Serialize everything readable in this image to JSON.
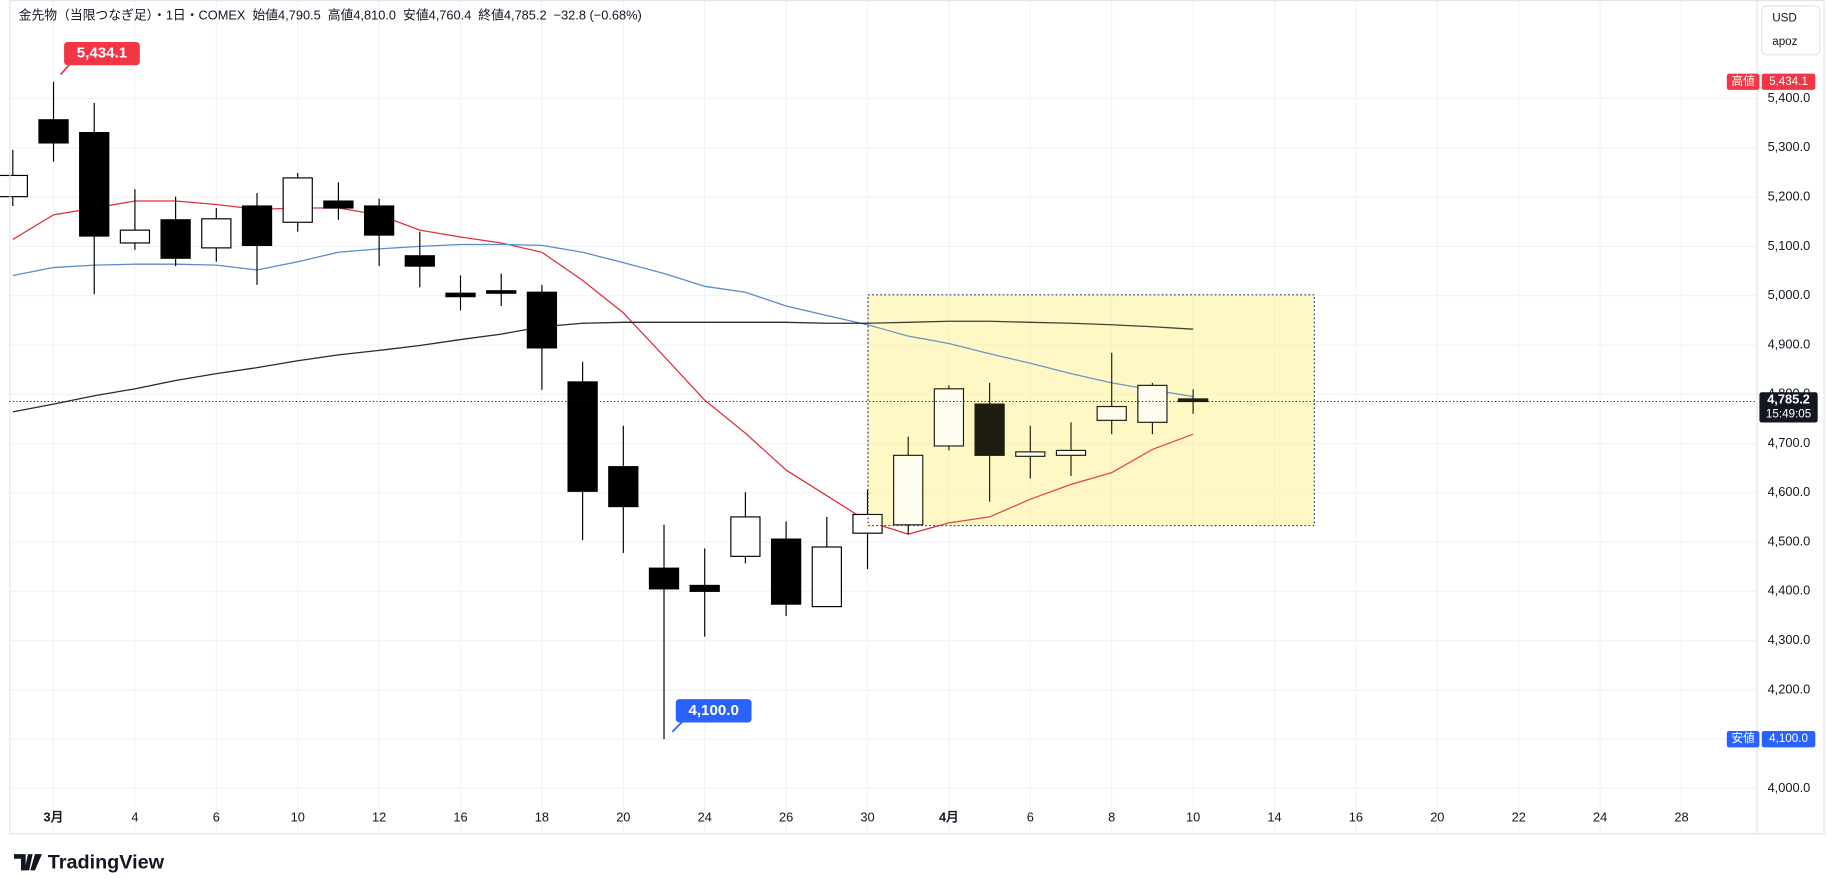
{
  "chart_data": {
    "type": "candlestick",
    "title": "金先物（当限つなぎ足）",
    "subtitle": "・1日・COMEX",
    "ohlc_legend": [
      {
        "label": "始値",
        "value": "4,790.5"
      },
      {
        "label": "高値",
        "value": "4,810.0"
      },
      {
        "label": "安値",
        "value": "4,760.4"
      },
      {
        "label": "終値",
        "value": "4,785.2"
      }
    ],
    "change": "−32.8 (−0.68%)",
    "categories": [
      null,
      "3月",
      null,
      "4",
      null,
      "6",
      null,
      "10",
      null,
      "12",
      null,
      "16",
      null,
      "18",
      null,
      "20",
      null,
      "24",
      null,
      "26",
      null,
      "30",
      null,
      "4月",
      null,
      "6",
      null,
      "8",
      null,
      "10",
      null,
      "14",
      null,
      "16",
      null,
      "20",
      null,
      "22",
      null,
      "24",
      null,
      "28"
    ],
    "open": [
      5201,
      5357,
      5331,
      5107,
      5154,
      5097,
      5182,
      5149,
      5192,
      5182,
      5081,
      5005,
      5010,
      5007,
      4825,
      4653,
      4447,
      4412,
      4471,
      4506,
      4369,
      4518,
      4535,
      4695,
      4780,
      4674,
      4676,
      4747,
      4743,
      4790.5,
      null,
      null,
      null,
      null,
      null,
      null,
      null,
      null,
      null,
      null,
      null,
      null
    ],
    "high": [
      5296,
      5434.1,
      5391,
      5216,
      5201,
      5178,
      5208,
      5249,
      5230,
      5197,
      5130,
      5041,
      5045,
      5022,
      4866,
      4736,
      4535,
      4487,
      4601,
      4542,
      4551,
      4606,
      4714,
      4818,
      4823,
      4736,
      4743,
      4884,
      4823,
      4810,
      null,
      null,
      null,
      null,
      null,
      null,
      null,
      null,
      null,
      null,
      null,
      null
    ],
    "low": [
      5182,
      5272,
      5003,
      5093,
      5060,
      5069,
      5022,
      5130,
      5154,
      5060,
      5017,
      4970,
      4979,
      4809,
      4504,
      4478,
      4100,
      4308,
      4457,
      4350,
      4369,
      4445,
      4516,
      4686,
      4582,
      4629,
      4634,
      4719,
      4719,
      4760.4,
      null,
      null,
      null,
      null,
      null,
      null,
      null,
      null,
      null,
      null,
      null,
      null
    ],
    "close": [
      5244,
      5310,
      5121,
      5133,
      5076,
      5156,
      5102,
      5239,
      5178,
      5123,
      5060,
      4998,
      5005,
      4894,
      4603,
      4572,
      4405,
      4400,
      4551,
      4374,
      4490,
      4556,
      4676,
      4811,
      4676,
      4683,
      4686,
      4775,
      4818,
      4785.2,
      null,
      null,
      null,
      null,
      null,
      null,
      null,
      null,
      null,
      null,
      null,
      null
    ],
    "up_color": "#ffffff",
    "down_color": "#000000",
    "moving_averages": [
      {
        "color": "#e0313c",
        "values": [
          5114,
          5164,
          5178,
          5192,
          5192,
          5185,
          5175,
          5178,
          5178,
          5164,
          5133,
          5119,
          5107,
          5088,
          5031,
          4965,
          4877,
          4788,
          4721,
          4646,
          4594,
          4542,
          4516,
          4539,
          4551,
          4587,
          4617,
          4641,
          4688,
          4719,
          null,
          null,
          null,
          null,
          null,
          null,
          null,
          null,
          null,
          null,
          null,
          null
        ]
      },
      {
        "color": "#5b8ad0",
        "values": [
          5041,
          5057,
          5062,
          5064,
          5064,
          5062,
          5052,
          5069,
          5088,
          5095,
          5100,
          5104,
          5104,
          5102,
          5088,
          5067,
          5045,
          5019,
          5007,
          4979,
          4960,
          4941,
          4918,
          4903,
          4882,
          4863,
          4842,
          4823,
          4809,
          4795,
          null,
          null,
          null,
          null,
          null,
          null,
          null,
          null,
          null,
          null,
          null,
          null
        ]
      },
      {
        "color": "#2a2a2a",
        "values": [
          4764,
          4780,
          4797,
          4811,
          4828,
          4842,
          4854,
          4868,
          4880,
          4889,
          4899,
          4911,
          4922,
          4937,
          4944,
          4946,
          4946,
          4946,
          4946,
          4946,
          4944,
          4944,
          4946,
          4948,
          4948,
          4946,
          4944,
          4941,
          4937,
          4932,
          null,
          null,
          null,
          null,
          null,
          null,
          null,
          null,
          null,
          null,
          null,
          null
        ]
      }
    ],
    "ylim": [
      3910,
      5600
    ],
    "yticks": [
      {
        "value": 4000,
        "label": "4,000.0"
      },
      {
        "value": 4100,
        "label": "4,100.0"
      },
      {
        "value": 4200,
        "label": "4,200.0"
      },
      {
        "value": 4300,
        "label": "4,300.0"
      },
      {
        "value": 4400,
        "label": "4,400.0"
      },
      {
        "value": 4500,
        "label": "4,500.0"
      },
      {
        "value": 4600,
        "label": "4,600.0"
      },
      {
        "value": 4700,
        "label": "4,700.0"
      },
      {
        "value": 4800,
        "label": "4,800.0"
      },
      {
        "value": 4900,
        "label": "4,900.0"
      },
      {
        "value": 5000,
        "label": "5,000.0"
      },
      {
        "value": 5100,
        "label": "5,100.0"
      },
      {
        "value": 5200,
        "label": "5,200.0"
      },
      {
        "value": 5300,
        "label": "5,300.0"
      },
      {
        "value": 5400,
        "label": "5,400.0"
      }
    ],
    "grid": true,
    "high_marker": {
      "label": "高値",
      "value": 5434.1,
      "value_label": "5,434.1"
    },
    "low_marker": {
      "label": "安値",
      "value": 4100,
      "value_label": "4,100.0"
    },
    "last_price": {
      "value": 4785.2,
      "value_label": "4,785.2",
      "countdown": "15:49:05"
    }
  },
  "currency": "USD",
  "account": "apoz",
  "branding": "TradingView"
}
